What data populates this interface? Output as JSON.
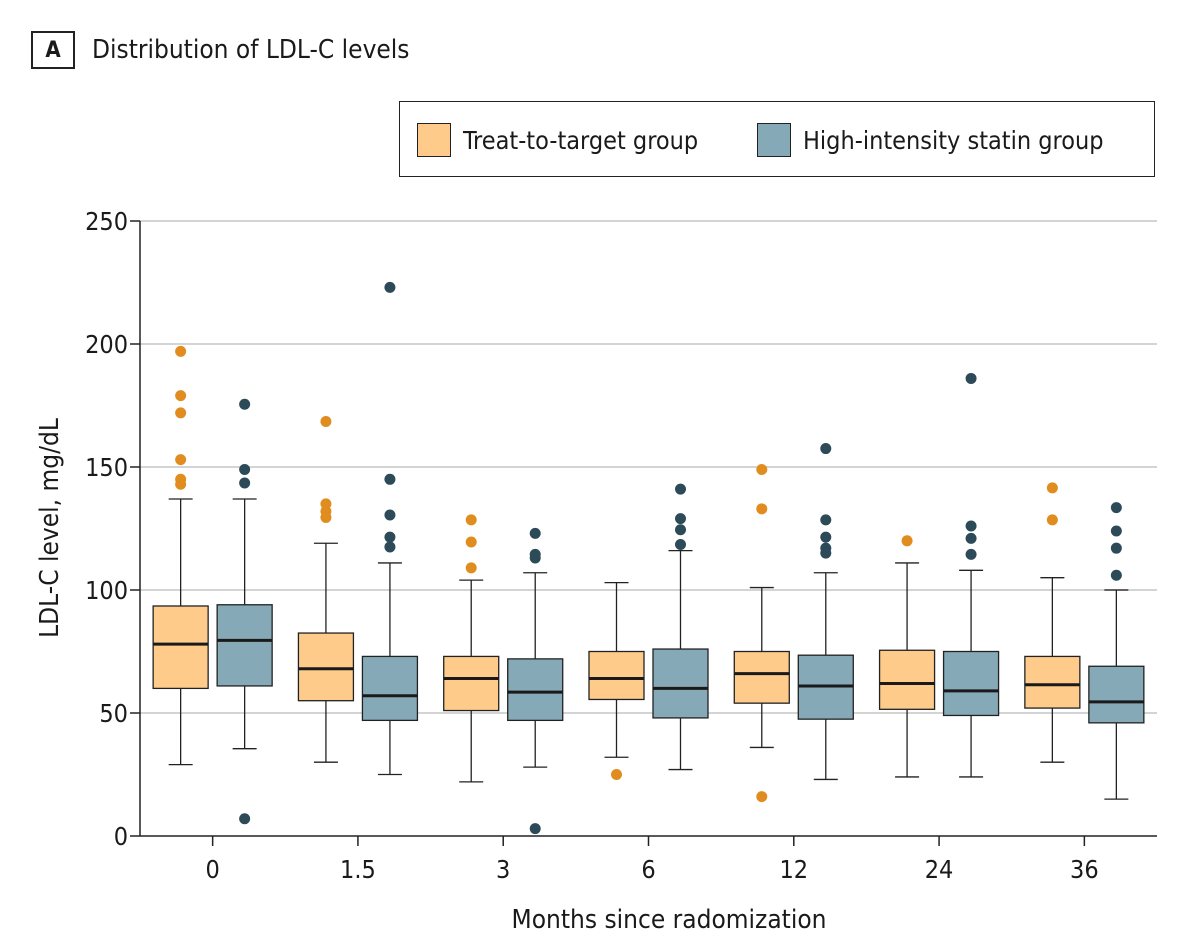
{
  "panel": {
    "letter": "A",
    "title": "Distribution of LDL-C levels"
  },
  "legend": {
    "items": [
      {
        "label": "Treat-to-target group",
        "color": "#FECB8B"
      },
      {
        "label": "High-intensity statin group",
        "color": "#86A9B8"
      }
    ]
  },
  "chart_data": {
    "type": "box",
    "title": "Distribution of LDL-C levels",
    "xlabel": "Months since radomization",
    "ylabel": "LDL-C level, mg/dL",
    "categories": [
      "0",
      "1.5",
      "3",
      "6",
      "12",
      "24",
      "36"
    ],
    "ylim": [
      0,
      250
    ],
    "yticks": [
      0,
      50,
      100,
      150,
      200,
      250
    ],
    "grid": "horizontal",
    "legend_position": "top-right",
    "series": [
      {
        "name": "Treat-to-target group",
        "color": "#FECB8B",
        "outlier_color": "#E08C1E",
        "boxes": [
          {
            "min": 29,
            "q1": 60,
            "median": 78,
            "q3": 93.5,
            "max": 137,
            "outliers": [
              197,
              179,
              172,
              153,
              145,
              143
            ]
          },
          {
            "min": 30,
            "q1": 55,
            "median": 68,
            "q3": 82.5,
            "max": 119,
            "outliers": [
              168.5,
              135,
              132,
              129.5
            ]
          },
          {
            "min": 22,
            "q1": 51,
            "median": 64,
            "q3": 73,
            "max": 104,
            "outliers": [
              128.5,
              119.5,
              109
            ]
          },
          {
            "min": 32,
            "q1": 55.5,
            "median": 64,
            "q3": 75,
            "max": 103,
            "outliers": [
              25
            ]
          },
          {
            "min": 36,
            "q1": 54,
            "median": 66,
            "q3": 75,
            "max": 101,
            "outliers": [
              149,
              133,
              16
            ]
          },
          {
            "min": 24,
            "q1": 51.5,
            "median": 62,
            "q3": 75.5,
            "max": 111,
            "outliers": [
              120
            ]
          },
          {
            "min": 30,
            "q1": 52,
            "median": 61.5,
            "q3": 73,
            "max": 105,
            "outliers": [
              141.5,
              128.5
            ]
          }
        ]
      },
      {
        "name": "High-intensity statin group",
        "color": "#86A9B8",
        "outlier_color": "#2C4A57",
        "boxes": [
          {
            "min": 35.5,
            "q1": 61,
            "median": 79.5,
            "q3": 94,
            "max": 137,
            "outliers": [
              175.5,
              149,
              143.5,
              7
            ]
          },
          {
            "min": 25,
            "q1": 47,
            "median": 57,
            "q3": 73,
            "max": 111,
            "outliers": [
              223,
              145,
              130.5,
              121.5,
              117.5
            ]
          },
          {
            "min": 28,
            "q1": 47,
            "median": 58.5,
            "q3": 72,
            "max": 107,
            "outliers": [
              123,
              114.5,
              113,
              3
            ]
          },
          {
            "min": 27,
            "q1": 48,
            "median": 60,
            "q3": 76,
            "max": 116,
            "outliers": [
              141,
              129,
              124.5,
              118.5
            ]
          },
          {
            "min": 23,
            "q1": 47.5,
            "median": 61,
            "q3": 73.5,
            "max": 107,
            "outliers": [
              157.5,
              128.5,
              121.5,
              117,
              115
            ]
          },
          {
            "min": 24,
            "q1": 49,
            "median": 59,
            "q3": 75,
            "max": 108,
            "outliers": [
              186,
              126,
              121,
              114.5
            ]
          },
          {
            "min": 15,
            "q1": 46,
            "median": 54.5,
            "q3": 69,
            "max": 100,
            "outliers": [
              133.5,
              124,
              117,
              106
            ]
          }
        ]
      }
    ]
  }
}
